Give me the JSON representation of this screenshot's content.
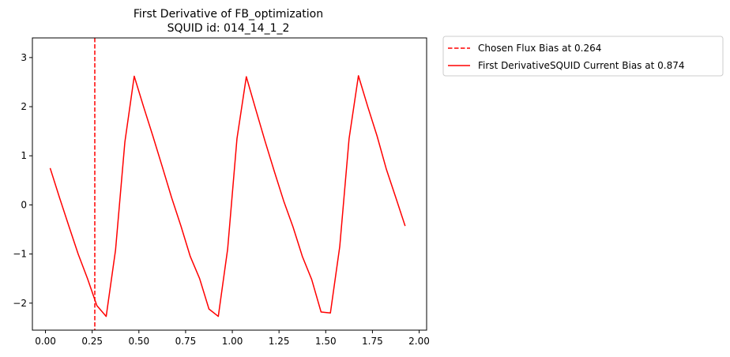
{
  "chart_data": {
    "type": "line",
    "title": "First Derivative of FB_optimization",
    "subtitle": "SQUID id: 014_14_1_2",
    "xlabel": "",
    "ylabel": "",
    "xlim": [
      -0.07,
      2.04
    ],
    "ylim": [
      -2.55,
      3.4
    ],
    "x_ticks": [
      0.0,
      0.25,
      0.5,
      0.75,
      1.0,
      1.25,
      1.5,
      1.75,
      2.0
    ],
    "x_tick_labels": [
      "0.00",
      "0.25",
      "0.50",
      "0.75",
      "1.00",
      "1.25",
      "1.50",
      "1.75",
      "2.00"
    ],
    "y_ticks": [
      -2,
      -1,
      0,
      1,
      2,
      3
    ],
    "y_tick_labels": [
      "−2",
      "−1",
      "0",
      "1",
      "2",
      "3"
    ],
    "grid": false,
    "legend_placement": "outside-top-right",
    "vline": {
      "name": "Chosen Flux Bias at 0.264",
      "x": 0.264,
      "color": "#ff0000",
      "style": "dashed"
    },
    "series": [
      {
        "name": "First DerivativeSQUID Current Bias at 0.874",
        "color": "#ff0000",
        "style": "solid",
        "x": [
          0.025,
          0.075,
          0.125,
          0.175,
          0.225,
          0.275,
          0.325,
          0.375,
          0.425,
          0.475,
          0.525,
          0.575,
          0.625,
          0.675,
          0.725,
          0.775,
          0.825,
          0.875,
          0.925,
          0.975,
          1.025,
          1.075,
          1.125,
          1.175,
          1.225,
          1.275,
          1.325,
          1.375,
          1.425,
          1.475,
          1.525,
          1.575,
          1.625,
          1.675,
          1.725,
          1.775,
          1.825,
          1.875,
          1.925
        ],
        "y": [
          0.75,
          0.15,
          -0.43,
          -1.0,
          -1.5,
          -2.05,
          -2.27,
          -0.92,
          1.28,
          2.62,
          2.0,
          1.4,
          0.78,
          0.15,
          -0.43,
          -1.05,
          -1.5,
          -2.12,
          -2.27,
          -0.9,
          1.35,
          2.61,
          1.95,
          1.3,
          0.68,
          0.08,
          -0.45,
          -1.05,
          -1.52,
          -2.18,
          -2.2,
          -0.85,
          1.35,
          2.63,
          2.0,
          1.4,
          0.72,
          0.15,
          -0.43
        ]
      }
    ]
  }
}
